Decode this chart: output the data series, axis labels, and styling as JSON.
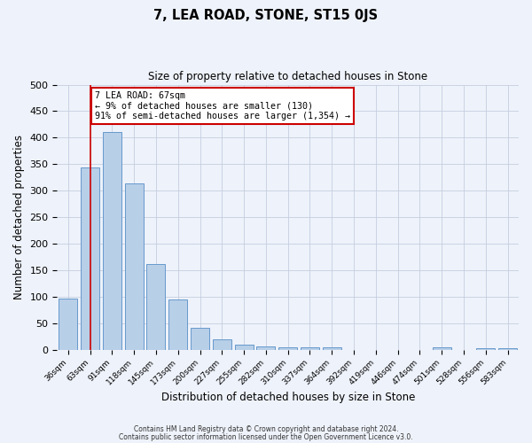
{
  "title": "7, LEA ROAD, STONE, ST15 0JS",
  "subtitle": "Size of property relative to detached houses in Stone",
  "xlabel": "Distribution of detached houses by size in Stone",
  "ylabel": "Number of detached properties",
  "bar_labels": [
    "36sqm",
    "63sqm",
    "91sqm",
    "118sqm",
    "145sqm",
    "173sqm",
    "200sqm",
    "227sqm",
    "255sqm",
    "282sqm",
    "310sqm",
    "337sqm",
    "364sqm",
    "392sqm",
    "419sqm",
    "446sqm",
    "474sqm",
    "501sqm",
    "528sqm",
    "556sqm",
    "583sqm"
  ],
  "bar_values": [
    97,
    343,
    410,
    314,
    162,
    95,
    42,
    20,
    10,
    6,
    5,
    5,
    5,
    0,
    0,
    0,
    0,
    5,
    0,
    3,
    3
  ],
  "bar_color": "#b8cfe8",
  "bar_edge_color": "#6699cc",
  "background_color": "#eef2fa",
  "grid_color": "#c5cfe0",
  "vline_x": 1,
  "vline_color": "#cc0000",
  "annotation_title": "7 LEA ROAD: 67sqm",
  "annotation_line1": "← 9% of detached houses are smaller (130)",
  "annotation_line2": "91% of semi-detached houses are larger (1,354) →",
  "annotation_box_facecolor": "#ffffff",
  "annotation_box_edge": "#cc0000",
  "ylim": [
    0,
    500
  ],
  "yticks": [
    0,
    50,
    100,
    150,
    200,
    250,
    300,
    350,
    400,
    450,
    500
  ],
  "footer1": "Contains HM Land Registry data © Crown copyright and database right 2024.",
  "footer2": "Contains public sector information licensed under the Open Government Licence v3.0."
}
